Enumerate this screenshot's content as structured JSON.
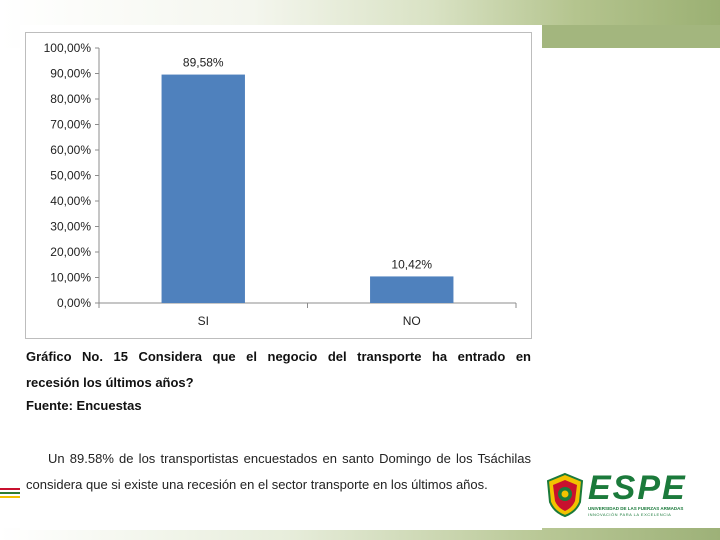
{
  "chart_data": {
    "type": "bar",
    "categories": [
      "SI",
      "NO"
    ],
    "values": [
      89.58,
      10.42
    ],
    "data_labels": [
      "89,58%",
      "10,42%"
    ],
    "y_ticks": [
      "0,00%",
      "10,00%",
      "20,00%",
      "30,00%",
      "40,00%",
      "50,00%",
      "60,00%",
      "70,00%",
      "80,00%",
      "90,00%",
      "100,00%"
    ],
    "ylim": [
      0,
      100
    ],
    "grid": false,
    "bar_color": "#4f81bd"
  },
  "caption": {
    "line1": "Gráfico No. 15 Considera que el negocio del transporte ha entrado en",
    "line2": "recesión los últimos años?"
  },
  "source": "Fuente: Encuestas",
  "body_text": "Un 89.58% de los transportistas encuestados en santo Domingo de los Tsáchilas considera que si existe una recesión en el sector transporte en los últimos años.",
  "logo": {
    "wordmark": "ESPE",
    "subtitle": "UNIVERSIDAD DE LAS FUERZAS ARMADAS",
    "tagline": "INNOVACIÓN PARA LA EXCELENCIA",
    "color": "#1b7a3b"
  },
  "theme": {
    "accent_green": "#9bb073"
  }
}
